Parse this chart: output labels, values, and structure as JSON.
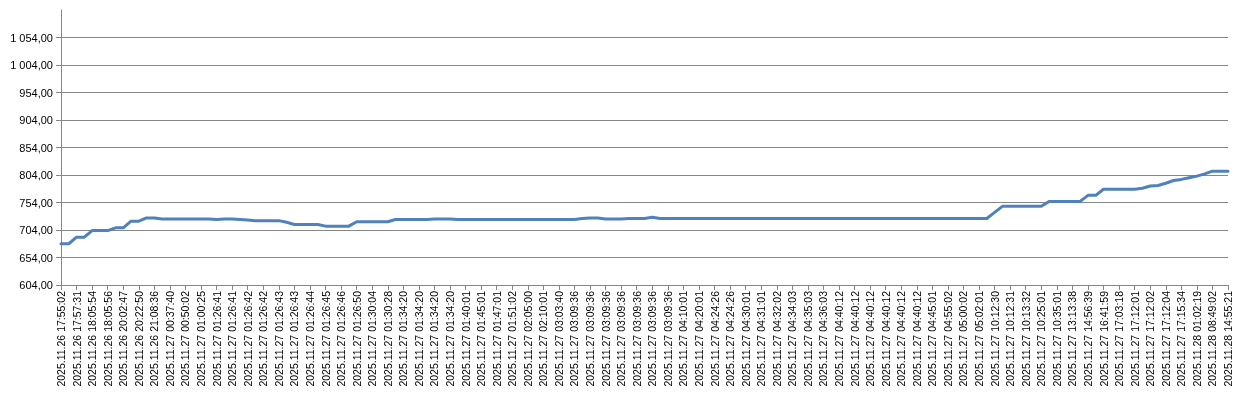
{
  "chart_data": {
    "type": "line",
    "categories": [
      "2025.11.26 17:55:02",
      null,
      "2025.11.26 17:57:31",
      null,
      "2025.11.26 18:05:54",
      null,
      "2025.11.26 18:05:56",
      null,
      "2025.11.26 20:02:47",
      null,
      "2025.11.26 20:22:50",
      null,
      "2025.11.26 21:08:36",
      null,
      "2025.11.27 00:37:40",
      null,
      "2025.11.27 00:50:02",
      null,
      "2025.11.27 01:00:25",
      null,
      "2025.11.27 01:26:41",
      null,
      "2025.11.27 01:26:41",
      null,
      "2025.11.27 01:26:42",
      null,
      "2025.11.27 01:26:42",
      null,
      "2025.11.27 01:26:43",
      null,
      "2025.11.27 01:26:43",
      null,
      "2025.11.27 01:26:44",
      null,
      "2025.11.27 01:26:45",
      null,
      "2025.11.27 01:26:46",
      null,
      "2025.11.27 01:26:50",
      null,
      "2025.11.27 01:30:04",
      null,
      "2025.11.27 01:30:28",
      null,
      "2025.11.27 01:34:20",
      null,
      "2025.11.27 01:34:20",
      null,
      "2025.11.27 01:34:20",
      null,
      "2025.11.27 01:34:20",
      null,
      "2025.11.27 01:40:01",
      null,
      "2025.11.27 01:45:01",
      null,
      "2025.11.27 01:47:01",
      null,
      "2025.11.27 01:51:02",
      null,
      "2025.11.27 02:05:00",
      null,
      "2025.11.27 02:10:01",
      null,
      "2025.11.27 03:03:40",
      null,
      "2025.11.27 03:09:36",
      null,
      "2025.11.27 03:09:36",
      null,
      "2025.11.27 03:09:36",
      null,
      "2025.11.27 03:09:36",
      null,
      "2025.11.27 03:09:36",
      null,
      "2025.11.27 03:09:36",
      null,
      "2025.11.27 03:09:36",
      null,
      "2025.11.27 04:10:01",
      null,
      "2025.11.27 04:20:01",
      null,
      "2025.11.27 04:24:26",
      null,
      "2025.11.27 04:24:26",
      null,
      "2025.11.27 04:30:01",
      null,
      "2025.11.27 04:31:01",
      null,
      "2025.11.27 04:32:02",
      null,
      "2025.11.27 04:34:03",
      null,
      "2025.11.27 04:35:03",
      null,
      "2025.11.27 04:36:03",
      null,
      "2025.11.27 04:40:12",
      null,
      "2025.11.27 04:40:12",
      null,
      "2025.11.27 04:40:12",
      null,
      "2025.11.27 04:40:12",
      null,
      "2025.11.27 04:40:12",
      null,
      "2025.11.27 04:40:12",
      null,
      "2025.11.27 04:45:01",
      null,
      "2025.11.27 04:55:02",
      null,
      "2025.11.27 05:00:02",
      null,
      "2025.11.27 05:02:01",
      null,
      "2025.11.27 10:12:30",
      null,
      "2025.11.27 10:12:31",
      null,
      "2025.11.27 10:13:32",
      null,
      "2025.11.27 10:25:01",
      null,
      "2025.11.27 10:35:01",
      null,
      "2025.11.27 13:13:38",
      null,
      "2025.11.27 14:56:39",
      null,
      "2025.11.27 16:41:59",
      null,
      "2025.11.27 17:03:18",
      null,
      "2025.11.27 17:12:01",
      null,
      "2025.11.27 17:12:02",
      null,
      "2025.11.27 17:12:04",
      null,
      "2025.11.27 17:15:34",
      null,
      "2025.11.28 01:02:19",
      null,
      "2025.11.28 08:49:02",
      null,
      "2025.11.28 14:55:21"
    ],
    "series": [
      {
        "color": "#4f81bd",
        "values": [
          679,
          679,
          691,
          691,
          703,
          703,
          703,
          708,
          708,
          720,
          720,
          726,
          726,
          724,
          724,
          724,
          724,
          724,
          724,
          724,
          723,
          724,
          724,
          723,
          722,
          721,
          721,
          721,
          721,
          718,
          714,
          714,
          714,
          714,
          711,
          711,
          711,
          711,
          719,
          719,
          719,
          719,
          719,
          723,
          723,
          723,
          723,
          723,
          724,
          724,
          724,
          723,
          723,
          723,
          723,
          723,
          723,
          723,
          723,
          723,
          723,
          723,
          723,
          723,
          723,
          723,
          723,
          725,
          726,
          726,
          724,
          724,
          724,
          725,
          725,
          725,
          727,
          725,
          725,
          725,
          725,
          725,
          725,
          725,
          725,
          725,
          725,
          725,
          725,
          725,
          725,
          725,
          725,
          725,
          725,
          725,
          725,
          725,
          725,
          725,
          725,
          725,
          725,
          725,
          725,
          725,
          725,
          725,
          725,
          725,
          725,
          725,
          725,
          725,
          725,
          725,
          725,
          725,
          725,
          725,
          736,
          747,
          747,
          747,
          747,
          747,
          747,
          756,
          756,
          756,
          756,
          756,
          767,
          767,
          778,
          778,
          778,
          778,
          778,
          780,
          784,
          785,
          789,
          794,
          796,
          799,
          802,
          806,
          811,
          811,
          811
        ]
      }
    ],
    "ylim": [
      604,
      1104
    ],
    "yticks": [
      {
        "value": 604,
        "label": "604,00"
      },
      {
        "value": 654,
        "label": "654,00"
      },
      {
        "value": 704,
        "label": "704,00"
      },
      {
        "value": 754,
        "label": "754,00"
      },
      {
        "value": 804,
        "label": "804,00"
      },
      {
        "value": 854,
        "label": "854,00"
      },
      {
        "value": 904,
        "label": "904,00"
      },
      {
        "value": 954,
        "label": "954,00"
      },
      {
        "value": 1004,
        "label": "1 004,00"
      },
      {
        "value": 1054,
        "label": "1 054,00"
      }
    ],
    "grid": "y",
    "marker": "none",
    "line_style": "solid"
  }
}
